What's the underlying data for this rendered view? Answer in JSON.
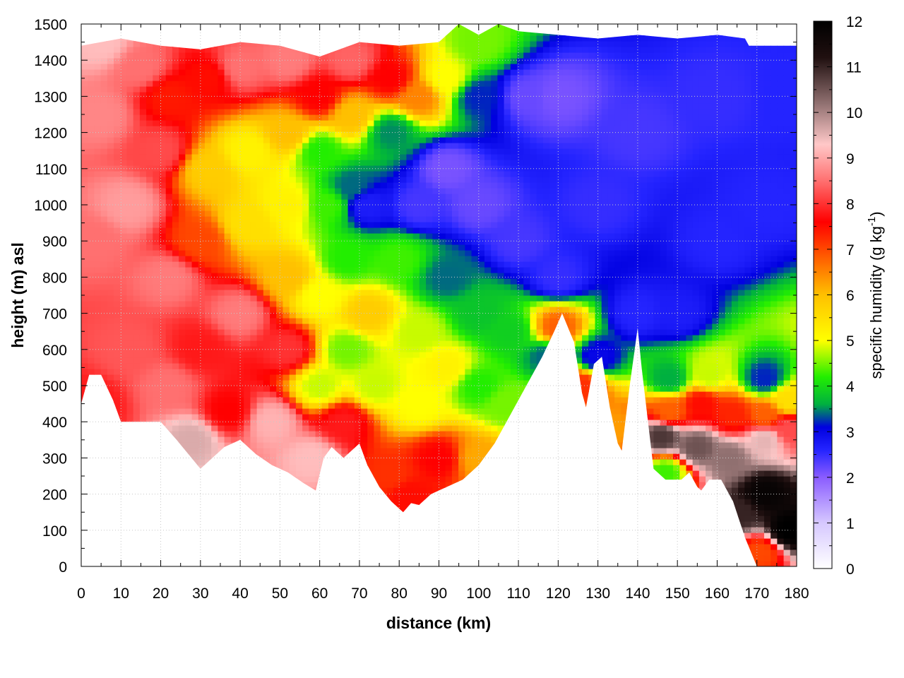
{
  "chart_data": {
    "type": "heatmap",
    "xlabel": "distance (km)",
    "ylabel": "height (m) asl",
    "colorbar": {
      "label_main": "specific humidity (g kg",
      "label_sup": "-1",
      "label_close": ")",
      "range": [
        0,
        12
      ],
      "ticks": [
        0,
        1,
        2,
        3,
        4,
        5,
        6,
        7,
        8,
        9,
        10,
        11,
        12
      ],
      "palette": [
        {
          "v": 0,
          "c": "#ffffff"
        },
        {
          "v": 1,
          "c": "#d6c8ff"
        },
        {
          "v": 2,
          "c": "#8a5cff"
        },
        {
          "v": 2.6,
          "c": "#2424ff"
        },
        {
          "v": 3.1,
          "c": "#0000e0"
        },
        {
          "v": 3.6,
          "c": "#00b040"
        },
        {
          "v": 4.2,
          "c": "#22ee00"
        },
        {
          "v": 5,
          "c": "#ffff00"
        },
        {
          "v": 6,
          "c": "#ffc000"
        },
        {
          "v": 6.8,
          "c": "#ff6000"
        },
        {
          "v": 7.6,
          "c": "#ff0000"
        },
        {
          "v": 8.5,
          "c": "#ff7070"
        },
        {
          "v": 9.3,
          "c": "#ffc8c8"
        },
        {
          "v": 10.2,
          "c": "#907070"
        },
        {
          "v": 11.2,
          "c": "#201010"
        },
        {
          "v": 12,
          "c": "#000000"
        }
      ]
    },
    "xlim": [
      0,
      180
    ],
    "ylim": [
      0,
      1500
    ],
    "xticks": [
      0,
      10,
      20,
      30,
      40,
      50,
      60,
      70,
      80,
      90,
      100,
      110,
      120,
      130,
      140,
      150,
      160,
      170,
      180
    ],
    "yticks": [
      0,
      100,
      200,
      300,
      400,
      500,
      600,
      700,
      800,
      900,
      1000,
      1100,
      1200,
      1300,
      1400,
      1500
    ],
    "grid": true,
    "terrain_boundary": {
      "x": [
        0,
        2,
        5,
        8,
        10,
        13,
        16,
        20,
        24,
        27,
        30,
        33,
        36,
        40,
        44,
        48,
        52,
        56,
        59,
        61,
        63,
        66,
        70,
        72,
        75,
        78,
        81,
        83,
        85,
        88,
        92,
        96,
        100,
        104,
        108,
        112,
        116,
        119,
        121,
        124,
        126,
        127,
        129,
        131,
        133,
        135,
        136,
        138,
        140,
        141,
        144,
        147,
        151,
        153,
        155,
        156,
        158,
        161,
        164,
        167,
        170,
        172,
        175,
        178,
        180
      ],
      "y": [
        450,
        530,
        530,
        460,
        400,
        400,
        400,
        400,
        350,
        310,
        270,
        300,
        330,
        350,
        310,
        280,
        260,
        230,
        210,
        300,
        330,
        300,
        340,
        280,
        220,
        180,
        150,
        175,
        170,
        200,
        220,
        240,
        280,
        340,
        420,
        500,
        580,
        650,
        700,
        620,
        480,
        440,
        560,
        580,
        440,
        340,
        320,
        500,
        660,
        550,
        270,
        240,
        240,
        260,
        220,
        210,
        240,
        240,
        180,
        80,
        0,
        0,
        0,
        0,
        0
      ]
    },
    "top_boundary": {
      "x": [
        0,
        5,
        10,
        20,
        30,
        40,
        50,
        60,
        70,
        80,
        90,
        95,
        100,
        105,
        110,
        120,
        130,
        140,
        150,
        160,
        167,
        168,
        180
      ],
      "y": [
        1440,
        1450,
        1460,
        1440,
        1430,
        1450,
        1440,
        1410,
        1450,
        1440,
        1450,
        1500,
        1470,
        1500,
        1480,
        1470,
        1460,
        1470,
        1460,
        1470,
        1460,
        1440,
        1440
      ]
    },
    "field_anchors": [
      {
        "x": 3,
        "y": 450,
        "v": 7.8
      },
      {
        "x": 3,
        "y": 900,
        "v": 8.5
      },
      {
        "x": 5,
        "y": 1250,
        "v": 8.7
      },
      {
        "x": 5,
        "y": 1450,
        "v": 9.2
      },
      {
        "x": 12,
        "y": 600,
        "v": 8.3
      },
      {
        "x": 12,
        "y": 1000,
        "v": 8.9
      },
      {
        "x": 15,
        "y": 1380,
        "v": 8.5
      },
      {
        "x": 22,
        "y": 500,
        "v": 8.5
      },
      {
        "x": 22,
        "y": 800,
        "v": 8.6
      },
      {
        "x": 20,
        "y": 1150,
        "v": 8.2
      },
      {
        "x": 22,
        "y": 1300,
        "v": 7.4
      },
      {
        "x": 28,
        "y": 350,
        "v": 9.6
      },
      {
        "x": 30,
        "y": 600,
        "v": 7.8
      },
      {
        "x": 30,
        "y": 900,
        "v": 7.0
      },
      {
        "x": 32,
        "y": 1100,
        "v": 5.8
      },
      {
        "x": 32,
        "y": 1350,
        "v": 7.5
      },
      {
        "x": 37,
        "y": 430,
        "v": 7.6
      },
      {
        "x": 40,
        "y": 700,
        "v": 8.6
      },
      {
        "x": 42,
        "y": 950,
        "v": 5.5
      },
      {
        "x": 42,
        "y": 1150,
        "v": 5.2
      },
      {
        "x": 40,
        "y": 1380,
        "v": 8.5
      },
      {
        "x": 48,
        "y": 400,
        "v": 9.1
      },
      {
        "x": 52,
        "y": 600,
        "v": 8.0
      },
      {
        "x": 52,
        "y": 800,
        "v": 6.0
      },
      {
        "x": 52,
        "y": 1000,
        "v": 5.2
      },
      {
        "x": 52,
        "y": 1200,
        "v": 6.0
      },
      {
        "x": 52,
        "y": 1400,
        "v": 8.6
      },
      {
        "x": 58,
        "y": 300,
        "v": 9.2
      },
      {
        "x": 60,
        "y": 500,
        "v": 4.8
      },
      {
        "x": 60,
        "y": 750,
        "v": 5.0
      },
      {
        "x": 62,
        "y": 1000,
        "v": 4.3
      },
      {
        "x": 60,
        "y": 1150,
        "v": 4.2
      },
      {
        "x": 60,
        "y": 1300,
        "v": 7.6
      },
      {
        "x": 66,
        "y": 400,
        "v": 7.8
      },
      {
        "x": 67,
        "y": 600,
        "v": 4.5
      },
      {
        "x": 67,
        "y": 850,
        "v": 4.2
      },
      {
        "x": 68,
        "y": 1050,
        "v": 3.4
      },
      {
        "x": 68,
        "y": 1250,
        "v": 6.0
      },
      {
        "x": 68,
        "y": 1400,
        "v": 8.4
      },
      {
        "x": 72,
        "y": 700,
        "v": 5.8
      },
      {
        "x": 72,
        "y": 1000,
        "v": 2.7
      },
      {
        "x": 74,
        "y": 500,
        "v": 4.8
      },
      {
        "x": 78,
        "y": 250,
        "v": 7.2
      },
      {
        "x": 80,
        "y": 850,
        "v": 4.3
      },
      {
        "x": 78,
        "y": 1200,
        "v": 3.5
      },
      {
        "x": 78,
        "y": 1350,
        "v": 7.6
      },
      {
        "x": 82,
        "y": 200,
        "v": 7.5
      },
      {
        "x": 85,
        "y": 450,
        "v": 5.0
      },
      {
        "x": 85,
        "y": 650,
        "v": 4.8
      },
      {
        "x": 85,
        "y": 1000,
        "v": 2.4
      },
      {
        "x": 85,
        "y": 1300,
        "v": 6.5
      },
      {
        "x": 90,
        "y": 300,
        "v": 7.6
      },
      {
        "x": 92,
        "y": 550,
        "v": 5.2
      },
      {
        "x": 92,
        "y": 800,
        "v": 3.4
      },
      {
        "x": 92,
        "y": 1100,
        "v": 2.1
      },
      {
        "x": 92,
        "y": 1350,
        "v": 5.0
      },
      {
        "x": 100,
        "y": 300,
        "v": 6.2
      },
      {
        "x": 100,
        "y": 500,
        "v": 4.2
      },
      {
        "x": 100,
        "y": 700,
        "v": 3.8
      },
      {
        "x": 100,
        "y": 1000,
        "v": 2.2
      },
      {
        "x": 100,
        "y": 1300,
        "v": 3.2
      },
      {
        "x": 100,
        "y": 1450,
        "v": 4.5
      },
      {
        "x": 107,
        "y": 450,
        "v": 4.5
      },
      {
        "x": 108,
        "y": 650,
        "v": 3.9
      },
      {
        "x": 110,
        "y": 900,
        "v": 2.4
      },
      {
        "x": 112,
        "y": 1300,
        "v": 2.2
      },
      {
        "x": 117,
        "y": 580,
        "v": 3.4
      },
      {
        "x": 120,
        "y": 660,
        "v": 6.8
      },
      {
        "x": 120,
        "y": 800,
        "v": 2.5
      },
      {
        "x": 120,
        "y": 1300,
        "v": 2.1
      },
      {
        "x": 126,
        "y": 500,
        "v": 7.2
      },
      {
        "x": 130,
        "y": 580,
        "v": 3.0
      },
      {
        "x": 130,
        "y": 1000,
        "v": 2.5
      },
      {
        "x": 135,
        "y": 380,
        "v": 6.3
      },
      {
        "x": 140,
        "y": 700,
        "v": 2.6
      },
      {
        "x": 140,
        "y": 1200,
        "v": 2.4
      },
      {
        "x": 146,
        "y": 360,
        "v": 10.8
      },
      {
        "x": 147,
        "y": 260,
        "v": 4.3
      },
      {
        "x": 148,
        "y": 430,
        "v": 6.8
      },
      {
        "x": 148,
        "y": 520,
        "v": 3.6
      },
      {
        "x": 150,
        "y": 700,
        "v": 2.7
      },
      {
        "x": 155,
        "y": 330,
        "v": 10.5
      },
      {
        "x": 156,
        "y": 450,
        "v": 7.5
      },
      {
        "x": 158,
        "y": 530,
        "v": 4.8
      },
      {
        "x": 160,
        "y": 900,
        "v": 2.6
      },
      {
        "x": 160,
        "y": 1300,
        "v": 2.5
      },
      {
        "x": 163,
        "y": 300,
        "v": 10.2
      },
      {
        "x": 164,
        "y": 420,
        "v": 7.3
      },
      {
        "x": 166,
        "y": 150,
        "v": 11.0
      },
      {
        "x": 171,
        "y": 40,
        "v": 7.0
      },
      {
        "x": 172,
        "y": 200,
        "v": 11.8
      },
      {
        "x": 172,
        "y": 350,
        "v": 9.5
      },
      {
        "x": 172,
        "y": 420,
        "v": 6.8
      },
      {
        "x": 172,
        "y": 520,
        "v": 3.2
      },
      {
        "x": 172,
        "y": 1000,
        "v": 2.6
      },
      {
        "x": 178,
        "y": 100,
        "v": 12.0
      },
      {
        "x": 178,
        "y": 380,
        "v": 8.2
      },
      {
        "x": 178,
        "y": 460,
        "v": 5.5
      },
      {
        "x": 178,
        "y": 1300,
        "v": 2.6
      }
    ]
  }
}
